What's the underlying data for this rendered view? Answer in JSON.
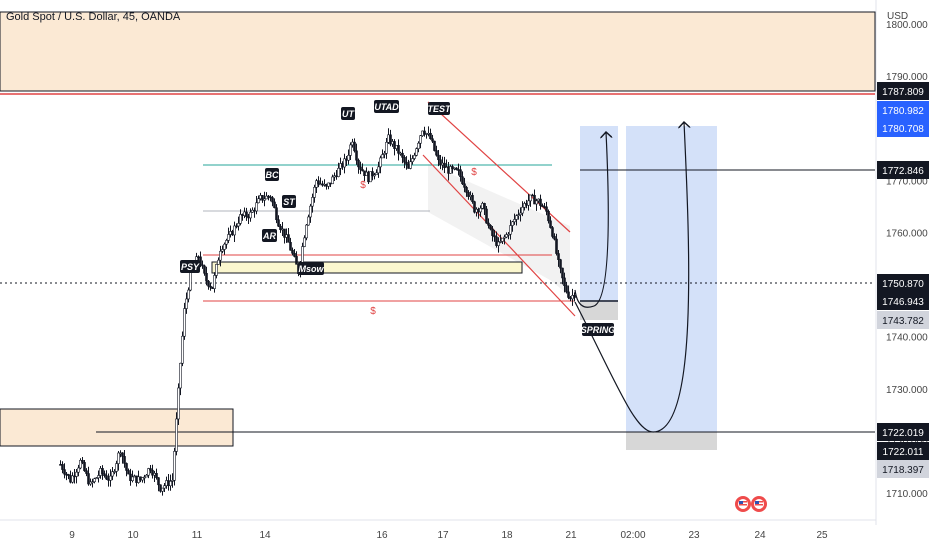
{
  "header": {
    "title": "Gold Spot / U.S. Dollar, 45, OANDA",
    "currency": "USD"
  },
  "colors": {
    "bull": "#26a69a",
    "bear": "#ef5350",
    "candle": "#131722",
    "zone_fill": "#fbe9d4",
    "range_fill": "#fbf7cf",
    "target_fill": "#c9d9f7",
    "stop_fill": "#d7d7d7",
    "channel": "#e04343",
    "axis_blue": "#2962ff"
  },
  "chart_data": {
    "type": "candlestick",
    "symbol": "Gold Spot / U.S. Dollar",
    "timeframe": "45",
    "broker": "OANDA",
    "y_axis": {
      "unit": "USD",
      "range": [
        1703,
        1804
      ],
      "ticks": [
        "1710.000",
        "1720.000",
        "1730.000",
        "1740.000",
        "1750.000",
        "1760.000",
        "1770.000",
        "1780.000",
        "1790.000",
        "1800.000"
      ]
    },
    "x_axis": {
      "ticks": [
        "9",
        "10",
        "11",
        "14",
        "16",
        "17",
        "18",
        "21",
        "02:00",
        "23",
        "24",
        "25"
      ]
    },
    "price_labels": [
      {
        "value": "1787.809",
        "style": "dark"
      },
      {
        "value": "1780.982",
        "style": "blue"
      },
      {
        "value": "1780.708",
        "style": "blue"
      },
      {
        "value": "1772.846",
        "style": "dark"
      },
      {
        "value": "1750.870",
        "style": "dark"
      },
      {
        "value": "1746.943",
        "style": "dark"
      },
      {
        "value": "1743.782",
        "style": "gray"
      },
      {
        "value": "1722.019",
        "style": "dark"
      },
      {
        "value": "1722.011",
        "style": "dark"
      },
      {
        "value": "1718.397",
        "style": "gray"
      }
    ],
    "annotations": [
      "PSY",
      "BC",
      "AR",
      "ST",
      "UT",
      "UTAD",
      "TEST",
      "Msow",
      "SPRING",
      "$",
      "$",
      "$"
    ],
    "zones": [
      {
        "kind": "supply",
        "from": 1787.8,
        "to": 1803.5
      },
      {
        "kind": "demand",
        "from": 1721.5,
        "to": 1728.0
      },
      {
        "kind": "trading-range",
        "from": 1752.2,
        "to": 1754.3
      }
    ],
    "levels": [
      1787.809,
      1772.846,
      1750.87,
      1746.943,
      1722.019
    ],
    "projection": {
      "low": 1722.011,
      "targets": [
        1780.982,
        1780.708
      ]
    },
    "grid": true,
    "legend": "none"
  }
}
